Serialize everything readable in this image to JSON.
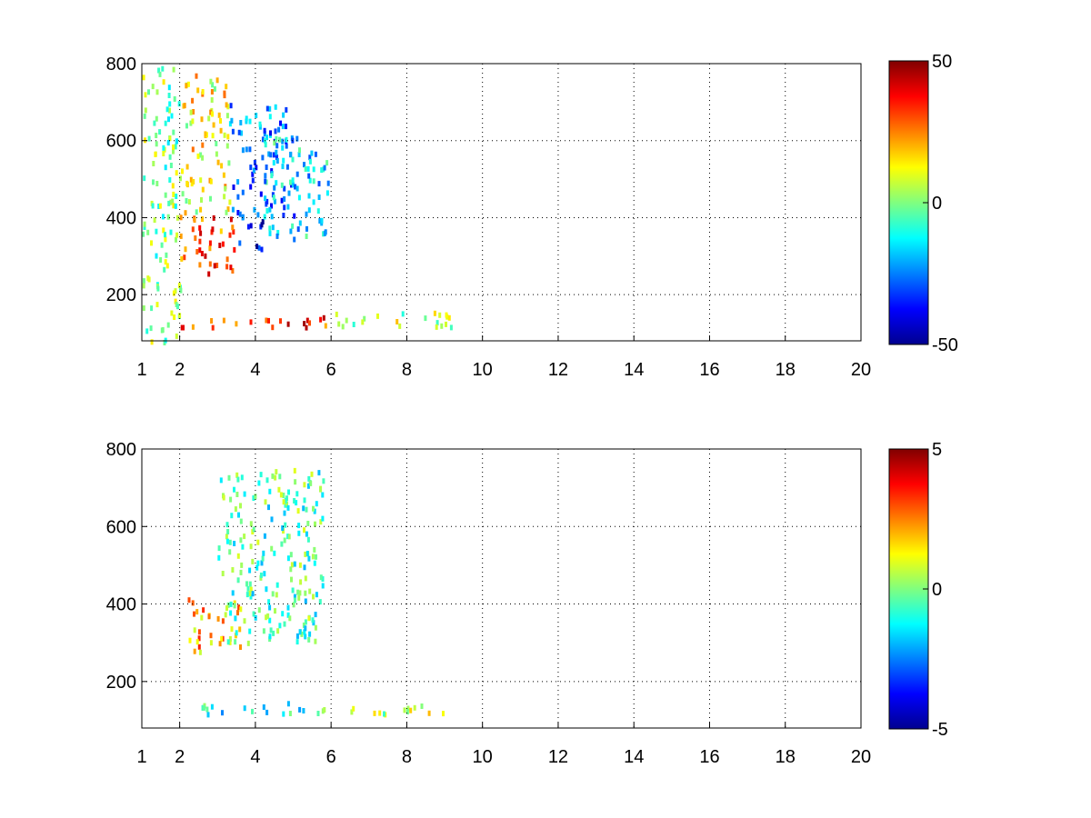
{
  "chart_data": [
    {
      "type": "heatmap",
      "title": "",
      "xlabel": "",
      "ylabel": "",
      "xlim": [
        1,
        20
      ],
      "ylim": [
        80,
        800
      ],
      "grid": true,
      "x_ticks": [
        1,
        2,
        4,
        6,
        8,
        10,
        12,
        14,
        16,
        18,
        20
      ],
      "x_tick_labels": [
        "1",
        "2",
        "4",
        "6",
        "8",
        "10",
        "12",
        "14",
        "16",
        "18",
        "20"
      ],
      "y_ticks": [
        200,
        400,
        600,
        800
      ],
      "y_tick_labels": [
        "200",
        "400",
        "600",
        "800"
      ],
      "colormap": "jet",
      "clim": [
        -50,
        50
      ],
      "colorbar_ticks": [
        50,
        0,
        -50
      ],
      "colorbar_tick_labels": [
        "50",
        "0",
        "-50"
      ],
      "regions": [
        {
          "x": [
            2.0,
            3.5
          ],
          "y": [
            260,
            420
          ],
          "value": 30
        },
        {
          "x": [
            2.0,
            3.3
          ],
          "y": [
            420,
            780
          ],
          "value": 12
        },
        {
          "x": [
            3.5,
            4.2
          ],
          "y": [
            320,
            400
          ],
          "value": -40
        },
        {
          "x": [
            3.3,
            5.0
          ],
          "y": [
            400,
            700
          ],
          "value": -25
        },
        {
          "x": [
            4.2,
            5.9
          ],
          "y": [
            350,
            620
          ],
          "value": -15
        },
        {
          "x": [
            2.0,
            5.9
          ],
          "y": [
            120,
            150
          ],
          "value": 35
        },
        {
          "x": [
            6.0,
            9.3
          ],
          "y": [
            120,
            160
          ],
          "value": 5
        },
        {
          "x": [
            1.0,
            2.0
          ],
          "y": [
            80,
            800
          ],
          "value": 0
        }
      ]
    },
    {
      "type": "heatmap",
      "title": "",
      "xlabel": "",
      "ylabel": "",
      "xlim": [
        1,
        20
      ],
      "ylim": [
        80,
        800
      ],
      "grid": true,
      "x_ticks": [
        1,
        2,
        4,
        6,
        8,
        10,
        12,
        14,
        16,
        18,
        20
      ],
      "x_tick_labels": [
        "1",
        "2",
        "4",
        "6",
        "8",
        "10",
        "12",
        "14",
        "16",
        "18",
        "20"
      ],
      "y_ticks": [
        200,
        400,
        600,
        800
      ],
      "y_tick_labels": [
        "200",
        "400",
        "600",
        "800"
      ],
      "colormap": "jet",
      "clim": [
        -5,
        5
      ],
      "colorbar_ticks": [
        5,
        0,
        -5
      ],
      "colorbar_tick_labels": [
        "5",
        "0",
        "-5"
      ],
      "regions": [
        {
          "x": [
            2.2,
            3.6
          ],
          "y": [
            280,
            420
          ],
          "value": 2
        },
        {
          "x": [
            3.0,
            5.8
          ],
          "y": [
            300,
            760
          ],
          "value": -0.5
        },
        {
          "x": [
            2.0,
            5.9
          ],
          "y": [
            120,
            150
          ],
          "value": -1
        },
        {
          "x": [
            6.5,
            9.3
          ],
          "y": [
            120,
            150
          ],
          "value": 0.5
        }
      ]
    }
  ]
}
